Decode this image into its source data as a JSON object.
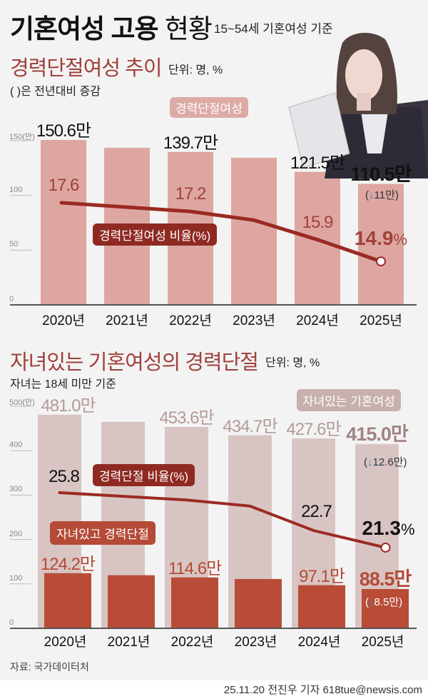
{
  "header": {
    "title_bold": "기혼여성 고용",
    "title_light": "현황",
    "subtitle": "15~54세 기혼여성 기준"
  },
  "colors": {
    "bar1": "#dea6a1",
    "line": "#9b2a22",
    "bar2_total": "#d8c5c3",
    "bar2_break": "#b84c37",
    "arrow": "#2a8ed6"
  },
  "chart_data": [
    {
      "type": "bar+line",
      "title": "경력단절여성 추이",
      "unit": "단위: 명, %",
      "note": "( )은 전년대비 증감",
      "categories": [
        "2020년",
        "2021년",
        "2022년",
        "2023년",
        "2024년",
        "2025년"
      ],
      "yticks": [
        "150(만)",
        "100",
        "50",
        "0"
      ],
      "ylim": [
        0,
        150
      ],
      "series": [
        {
          "name": "경력단절여성",
          "type": "bar",
          "values": [
            150.6,
            143.5,
            139.7,
            134.4,
            121.5,
            110.5
          ],
          "labels": [
            "150.6만",
            "",
            "139.7만",
            "",
            "121.5만",
            "110.5만"
          ]
        },
        {
          "name": "경력단절여성 비율(%)",
          "type": "line",
          "values": [
            17.6,
            17.4,
            17.2,
            16.8,
            15.9,
            14.9
          ],
          "labels": [
            "17.6",
            "",
            "17.2",
            "",
            "15.9",
            "14.9"
          ]
        }
      ],
      "pct_suffix": "%",
      "change": {
        "open": "(",
        "arrow": "↓",
        "value": "11만",
        "close": ")"
      }
    },
    {
      "type": "bar+line",
      "title": "자녀있는 기혼여성의 경력단절",
      "unit": "단위: 명, %",
      "note": "자녀는 18세 미만 기준",
      "categories": [
        "2020년",
        "2021년",
        "2022년",
        "2023년",
        "2024년",
        "2025년"
      ],
      "yticks": [
        "500(만)",
        "400",
        "300",
        "200",
        "100",
        "0"
      ],
      "ylim": [
        0,
        500
      ],
      "series": [
        {
          "name": "자녀있는 기혼여성",
          "type": "bar",
          "values": [
            481.0,
            465.0,
            453.6,
            434.7,
            427.6,
            415.0
          ],
          "labels": [
            "481.0만",
            "",
            "453.6만",
            "434.7만",
            "427.6만",
            "415.0만"
          ]
        },
        {
          "name": "자녀있고 경력단절",
          "type": "bar",
          "values": [
            124.2,
            119.5,
            114.6,
            111.0,
            97.1,
            88.5
          ],
          "labels": [
            "124.2만",
            "",
            "114.6만",
            "",
            "97.1만",
            "88.5만"
          ]
        },
        {
          "name": "경력단절 비율(%)",
          "type": "line",
          "values": [
            25.8,
            25.5,
            25.2,
            24.7,
            22.7,
            21.3
          ],
          "labels": [
            "25.8",
            "",
            "",
            "",
            "22.7",
            "21.3"
          ]
        }
      ],
      "pct_suffix": "%",
      "change_total": {
        "open": "(",
        "arrow": "↓",
        "value": "12.6만",
        "close": ")"
      },
      "change_break": {
        "open": "(",
        "arrow": "↓",
        "value": "8.5만",
        "close": ")"
      }
    }
  ],
  "footer": {
    "source": "자료: 국가데이터처",
    "credit": "25.11.20 전진우 기자 618tue@newsis.com"
  }
}
